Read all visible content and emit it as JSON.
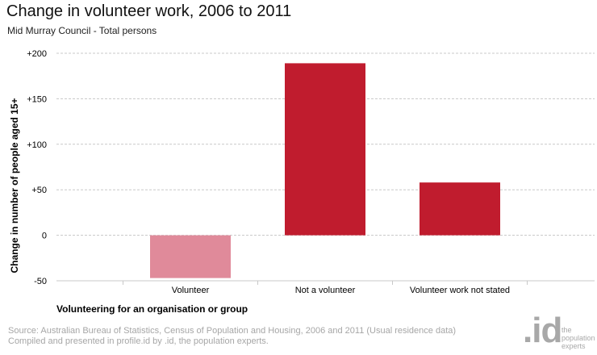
{
  "header": {
    "title": "Change in volunteer work, 2006 to 2011",
    "subtitle": "Mid Murray Council - Total persons"
  },
  "chart_data": {
    "type": "bar",
    "categories": [
      "Volunteer",
      "Not a volunteer",
      "Volunteer work not stated"
    ],
    "values": [
      -47,
      189,
      58
    ],
    "bar_colors": [
      "#e08a9a",
      "#c01c2e",
      "#c01c2e"
    ],
    "xlabel": "Volunteering for an organisation or group",
    "ylabel": "Change in number of people aged 15+",
    "ylim": [
      -50,
      200
    ],
    "yticks": [
      -50,
      0,
      50,
      100,
      150,
      200
    ],
    "ytick_labels": [
      "-50",
      "0",
      "+50",
      "+100",
      "+150",
      "+200"
    ],
    "grid": true
  },
  "footer": {
    "source_line1": "Source: Australian Bureau of Statistics, Census of Population and Housing, 2006 and 2011 (Usual residence data)",
    "source_line2": "Compiled and presented in profile.id by .id, the population experts."
  },
  "logo": {
    "mark": ".id",
    "tagline": "the population experts"
  }
}
